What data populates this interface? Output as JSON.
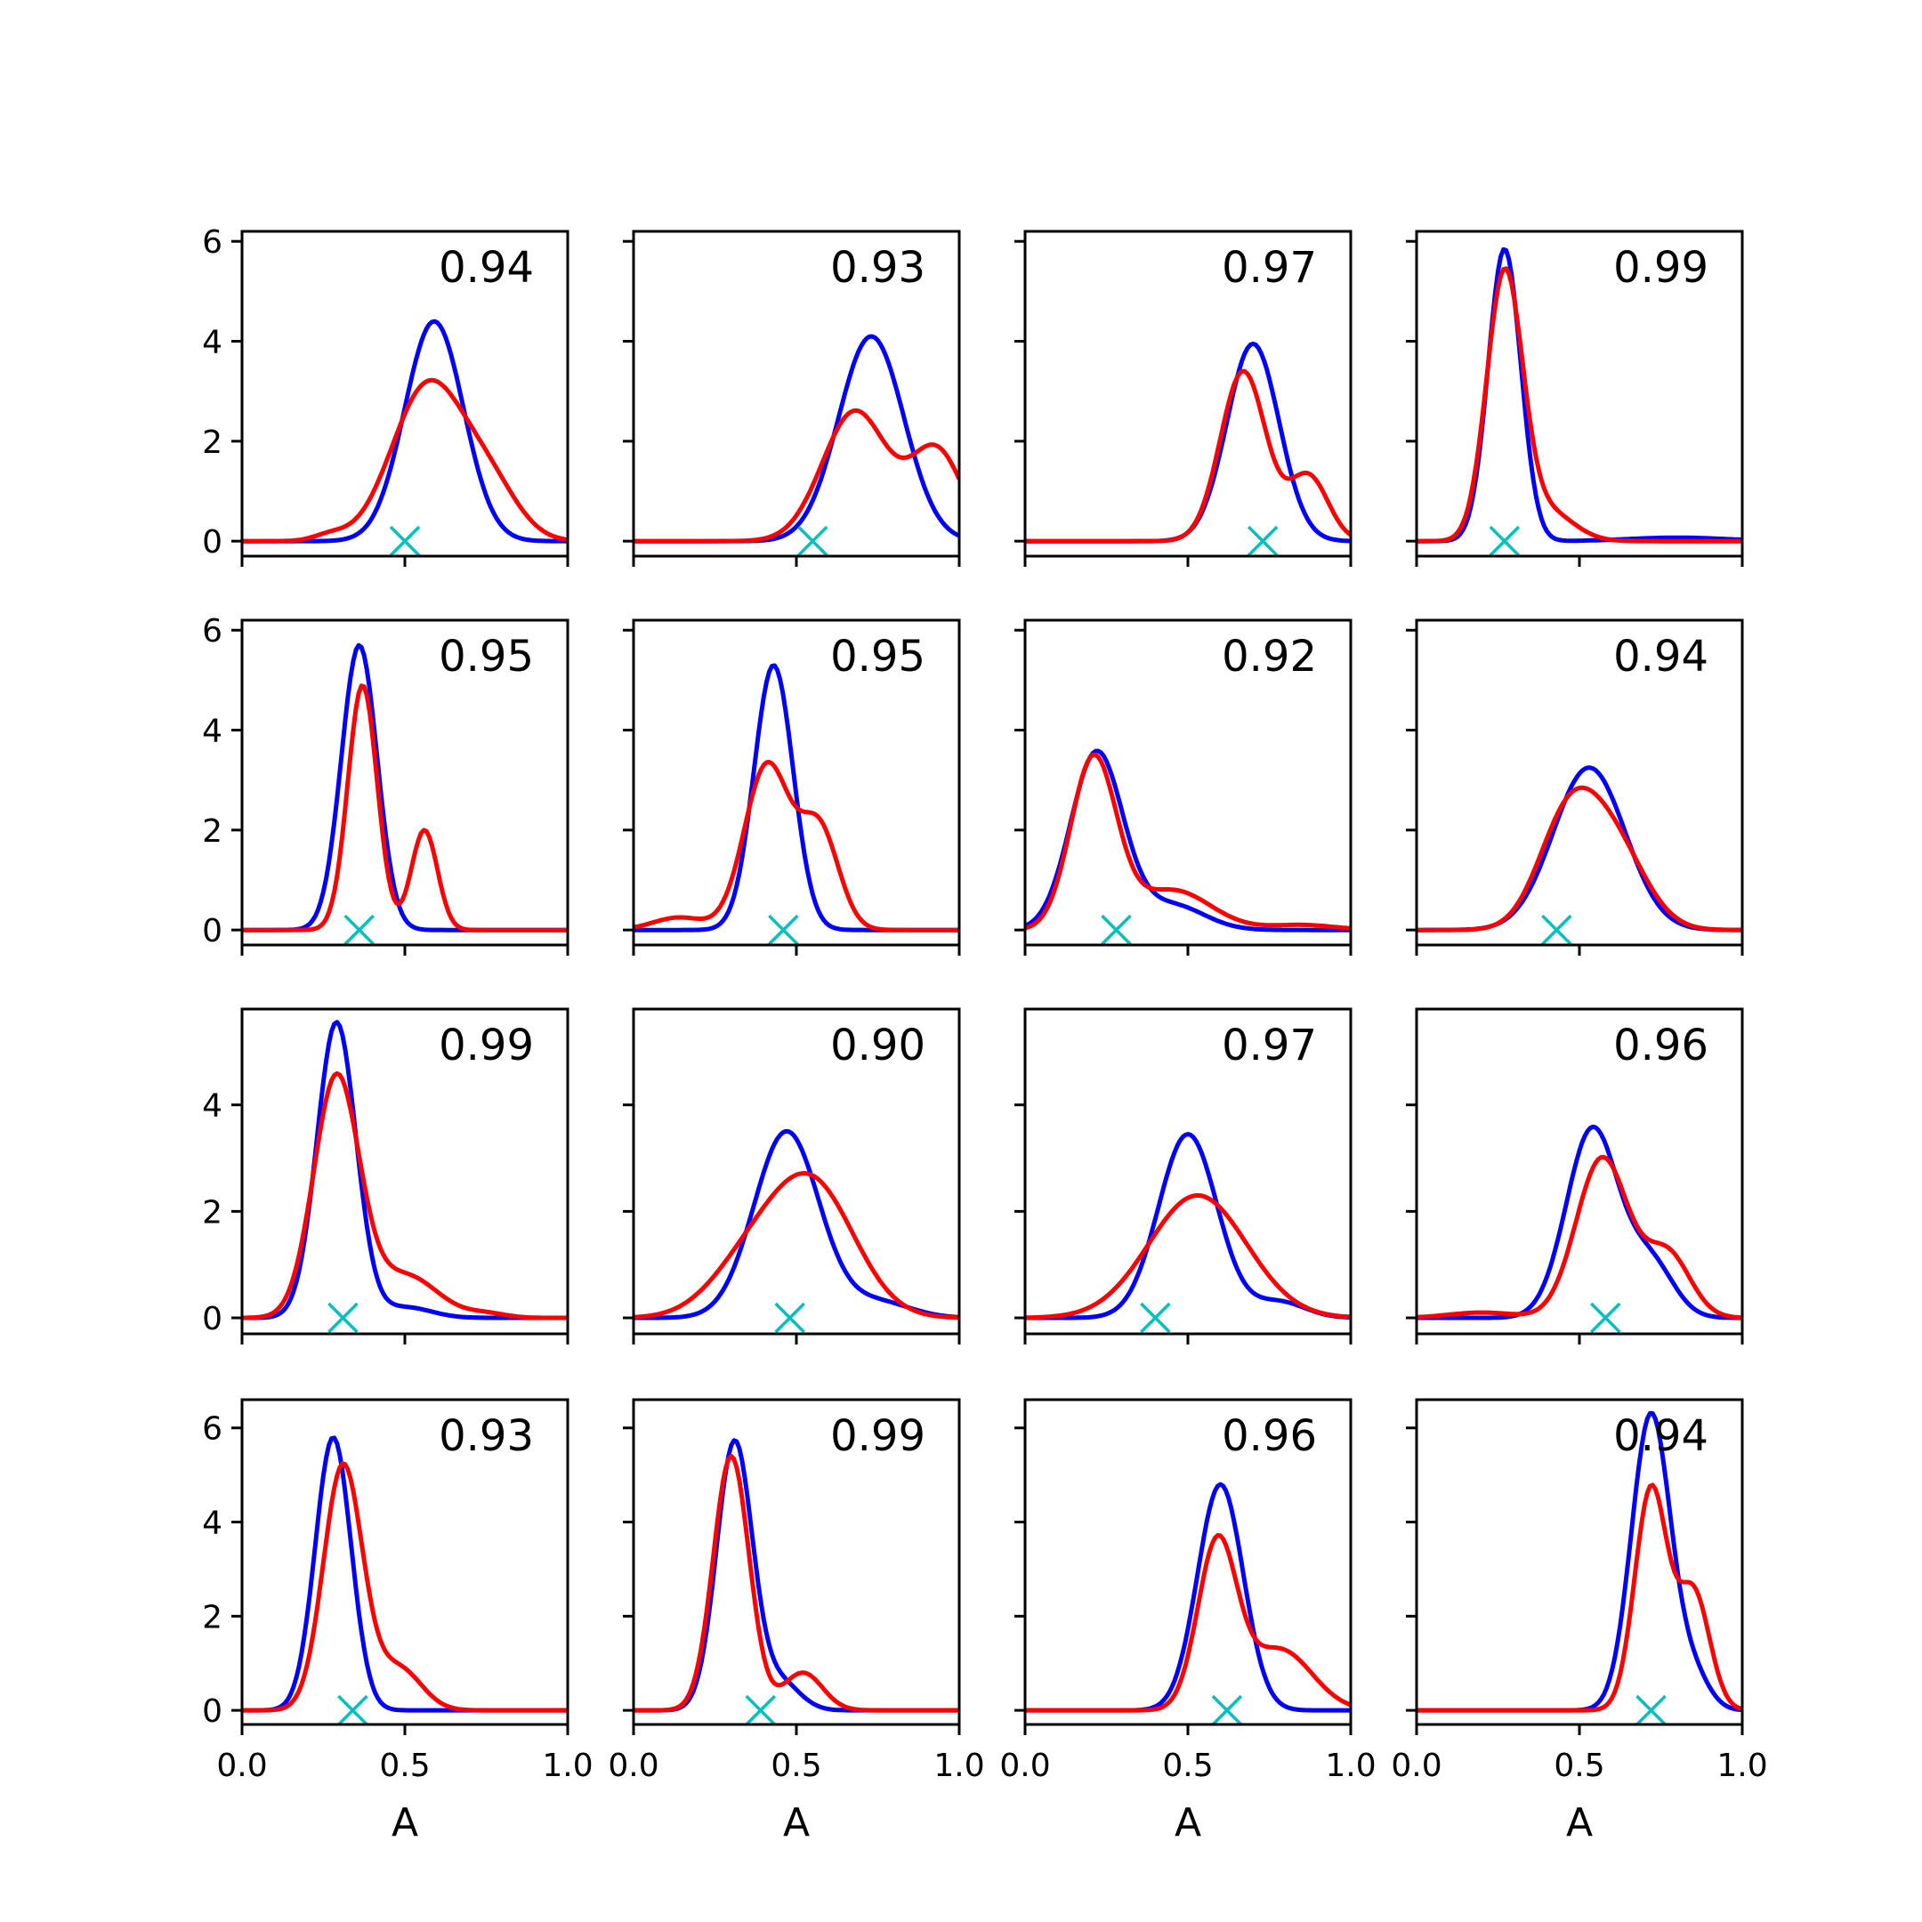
{
  "chart_data": {
    "type": "line",
    "layout": {
      "rows": 4,
      "cols": 4
    },
    "xlabel": "A",
    "xlim": [
      0,
      1
    ],
    "x_ticks": [
      0,
      0.5,
      1
    ],
    "x_tick_labels": [
      "0.0",
      "0.5",
      "1.0"
    ],
    "series_colors": {
      "blue": "#0000ff",
      "red": "#ff0000",
      "marker": "#00bfbf"
    },
    "grid": false,
    "panels": [
      {
        "label": "0.94",
        "ylim": [
          -0.3,
          6.2
        ],
        "y_ticks": [
          0,
          2,
          4,
          6
        ],
        "marker_x": 0.5,
        "blue": {
          "mu": 0.59,
          "sigma": 0.09,
          "amp": 4.4,
          "tail": []
        },
        "red": {
          "mu": 0.57,
          "sigma": 0.11,
          "amp": 3.1,
          "tail": [
            [
              0.76,
              0.09,
              1.0
            ],
            [
              0.27,
              0.05,
              0.12
            ]
          ]
        }
      },
      {
        "label": "0.93",
        "ylim": [
          -0.3,
          6.2
        ],
        "y_ticks": [
          0,
          2,
          4,
          6
        ],
        "marker_x": 0.55,
        "blue": {
          "mu": 0.73,
          "sigma": 0.1,
          "amp": 4.1,
          "tail": []
        },
        "red": {
          "mu": 0.68,
          "sigma": 0.1,
          "amp": 2.6,
          "tail": [
            [
              0.93,
              0.08,
              1.8
            ]
          ]
        }
      },
      {
        "label": "0.97",
        "ylim": [
          -0.3,
          6.2
        ],
        "y_ticks": [
          0,
          2,
          4,
          6
        ],
        "marker_x": 0.73,
        "blue": {
          "mu": 0.7,
          "sigma": 0.08,
          "amp": 3.95,
          "tail": []
        },
        "red": {
          "mu": 0.67,
          "sigma": 0.07,
          "amp": 3.4,
          "tail": [
            [
              0.87,
              0.06,
              1.3
            ]
          ]
        }
      },
      {
        "label": "0.99",
        "ylim": [
          -0.3,
          6.2
        ],
        "y_ticks": [
          0,
          2,
          4,
          6
        ],
        "marker_x": 0.27,
        "blue": {
          "mu": 0.27,
          "sigma": 0.05,
          "amp": 5.85,
          "tail": [
            [
              0.8,
              0.15,
              0.07
            ]
          ]
        },
        "red": {
          "mu": 0.27,
          "sigma": 0.055,
          "amp": 5.3,
          "tail": [
            [
              0.4,
              0.08,
              0.6
            ]
          ]
        }
      },
      {
        "label": "0.95",
        "ylim": [
          -0.3,
          6.2
        ],
        "y_ticks": [
          0,
          2,
          4,
          6
        ],
        "marker_x": 0.36,
        "blue": {
          "mu": 0.36,
          "sigma": 0.055,
          "amp": 5.7,
          "tail": []
        },
        "red": {
          "mu": 0.37,
          "sigma": 0.045,
          "amp": 4.9,
          "tail": [
            [
              0.56,
              0.04,
              2.0
            ]
          ]
        }
      },
      {
        "label": "0.95",
        "ylim": [
          -0.3,
          6.2
        ],
        "y_ticks": [
          0,
          2,
          4,
          6
        ],
        "marker_x": 0.46,
        "blue": {
          "mu": 0.43,
          "sigma": 0.06,
          "amp": 5.3,
          "tail": []
        },
        "red": {
          "mu": 0.41,
          "sigma": 0.07,
          "amp": 3.3,
          "tail": [
            [
              0.57,
              0.06,
              2.0
            ],
            [
              0.14,
              0.08,
              0.25
            ]
          ]
        }
      },
      {
        "label": "0.92",
        "ylim": [
          -0.3,
          6.2
        ],
        "y_ticks": [
          0,
          2,
          4,
          6
        ],
        "marker_x": 0.28,
        "blue": {
          "mu": 0.22,
          "sigma": 0.08,
          "amp": 3.55,
          "tail": [
            [
              0.45,
              0.1,
              0.5
            ]
          ]
        },
        "red": {
          "mu": 0.21,
          "sigma": 0.07,
          "amp": 3.4,
          "tail": [
            [
              0.45,
              0.12,
              0.8
            ],
            [
              0.85,
              0.1,
              0.1
            ]
          ]
        }
      },
      {
        "label": "0.94",
        "ylim": [
          -0.3,
          6.2
        ],
        "y_ticks": [
          0,
          2,
          4,
          6
        ],
        "marker_x": 0.43,
        "blue": {
          "mu": 0.53,
          "sigma": 0.11,
          "amp": 3.25,
          "tail": []
        },
        "red": {
          "mu": 0.46,
          "sigma": 0.09,
          "amp": 2.0,
          "tail": [
            [
              0.6,
              0.1,
              1.7
            ]
          ]
        }
      },
      {
        "label": "0.99",
        "ylim": [
          -0.3,
          5.8
        ],
        "y_ticks": [
          0,
          2,
          4
        ],
        "marker_x": 0.31,
        "blue": {
          "mu": 0.29,
          "sigma": 0.06,
          "amp": 5.55,
          "tail": [
            [
              0.5,
              0.08,
              0.2
            ]
          ]
        },
        "red": {
          "mu": 0.29,
          "sigma": 0.07,
          "amp": 4.5,
          "tail": [
            [
              0.5,
              0.1,
              0.8
            ],
            [
              0.75,
              0.06,
              0.08
            ]
          ]
        }
      },
      {
        "label": "0.90",
        "ylim": [
          -0.3,
          5.8
        ],
        "y_ticks": [
          0,
          2,
          4
        ],
        "marker_x": 0.48,
        "blue": {
          "mu": 0.47,
          "sigma": 0.1,
          "amp": 3.5,
          "tail": [
            [
              0.75,
              0.1,
              0.3
            ]
          ]
        },
        "red": {
          "mu": 0.55,
          "sigma": 0.13,
          "amp": 2.45,
          "tail": [
            [
              0.35,
              0.12,
              0.9
            ]
          ]
        }
      },
      {
        "label": "0.97",
        "ylim": [
          -0.3,
          5.8
        ],
        "y_ticks": [
          0,
          2,
          4
        ],
        "marker_x": 0.4,
        "blue": {
          "mu": 0.5,
          "sigma": 0.09,
          "amp": 3.45,
          "tail": [
            [
              0.78,
              0.08,
              0.3
            ]
          ]
        },
        "red": {
          "mu": 0.53,
          "sigma": 0.15,
          "amp": 2.3,
          "tail": []
        }
      },
      {
        "label": "0.96",
        "ylim": [
          -0.3,
          5.8
        ],
        "y_ticks": [
          0,
          2,
          4
        ],
        "marker_x": 0.58,
        "blue": {
          "mu": 0.54,
          "sigma": 0.08,
          "amp": 3.55,
          "tail": [
            [
              0.72,
              0.07,
              1.0
            ]
          ]
        },
        "red": {
          "mu": 0.57,
          "sigma": 0.08,
          "amp": 3.0,
          "tail": [
            [
              0.77,
              0.07,
              1.2
            ],
            [
              0.2,
              0.1,
              0.1
            ]
          ]
        }
      },
      {
        "label": "0.93",
        "ylim": [
          -0.3,
          6.6
        ],
        "y_ticks": [
          0,
          2,
          4,
          6
        ],
        "marker_x": 0.34,
        "blue": {
          "mu": 0.28,
          "sigma": 0.055,
          "amp": 5.8,
          "tail": []
        },
        "red": {
          "mu": 0.31,
          "sigma": 0.06,
          "amp": 5.2,
          "tail": [
            [
              0.48,
              0.07,
              0.9
            ]
          ]
        }
      },
      {
        "label": "0.99",
        "ylim": [
          -0.3,
          6.6
        ],
        "y_ticks": [
          0,
          2,
          4,
          6
        ],
        "marker_x": 0.39,
        "blue": {
          "mu": 0.31,
          "sigma": 0.055,
          "amp": 5.7,
          "tail": [
            [
              0.45,
              0.06,
              0.6
            ]
          ]
        },
        "red": {
          "mu": 0.3,
          "sigma": 0.055,
          "amp": 5.4,
          "tail": [
            [
              0.52,
              0.06,
              0.8
            ]
          ]
        }
      },
      {
        "label": "0.96",
        "ylim": [
          -0.3,
          6.6
        ],
        "y_ticks": [
          0,
          2,
          4,
          6
        ],
        "marker_x": 0.62,
        "blue": {
          "mu": 0.6,
          "sigma": 0.07,
          "amp": 4.8,
          "tail": []
        },
        "red": {
          "mu": 0.59,
          "sigma": 0.06,
          "amp": 3.5,
          "tail": [
            [
              0.78,
              0.1,
              1.3
            ]
          ]
        }
      },
      {
        "label": "0.94",
        "ylim": [
          -0.3,
          6.6
        ],
        "y_ticks": [
          0,
          2,
          4,
          6
        ],
        "marker_x": 0.72,
        "blue": {
          "mu": 0.72,
          "sigma": 0.06,
          "amp": 6.3,
          "tail": [
            [
              0.85,
              0.05,
              0.7
            ]
          ]
        },
        "red": {
          "mu": 0.72,
          "sigma": 0.05,
          "amp": 4.7,
          "tail": [
            [
              0.85,
              0.05,
              2.5
            ]
          ]
        }
      }
    ]
  }
}
